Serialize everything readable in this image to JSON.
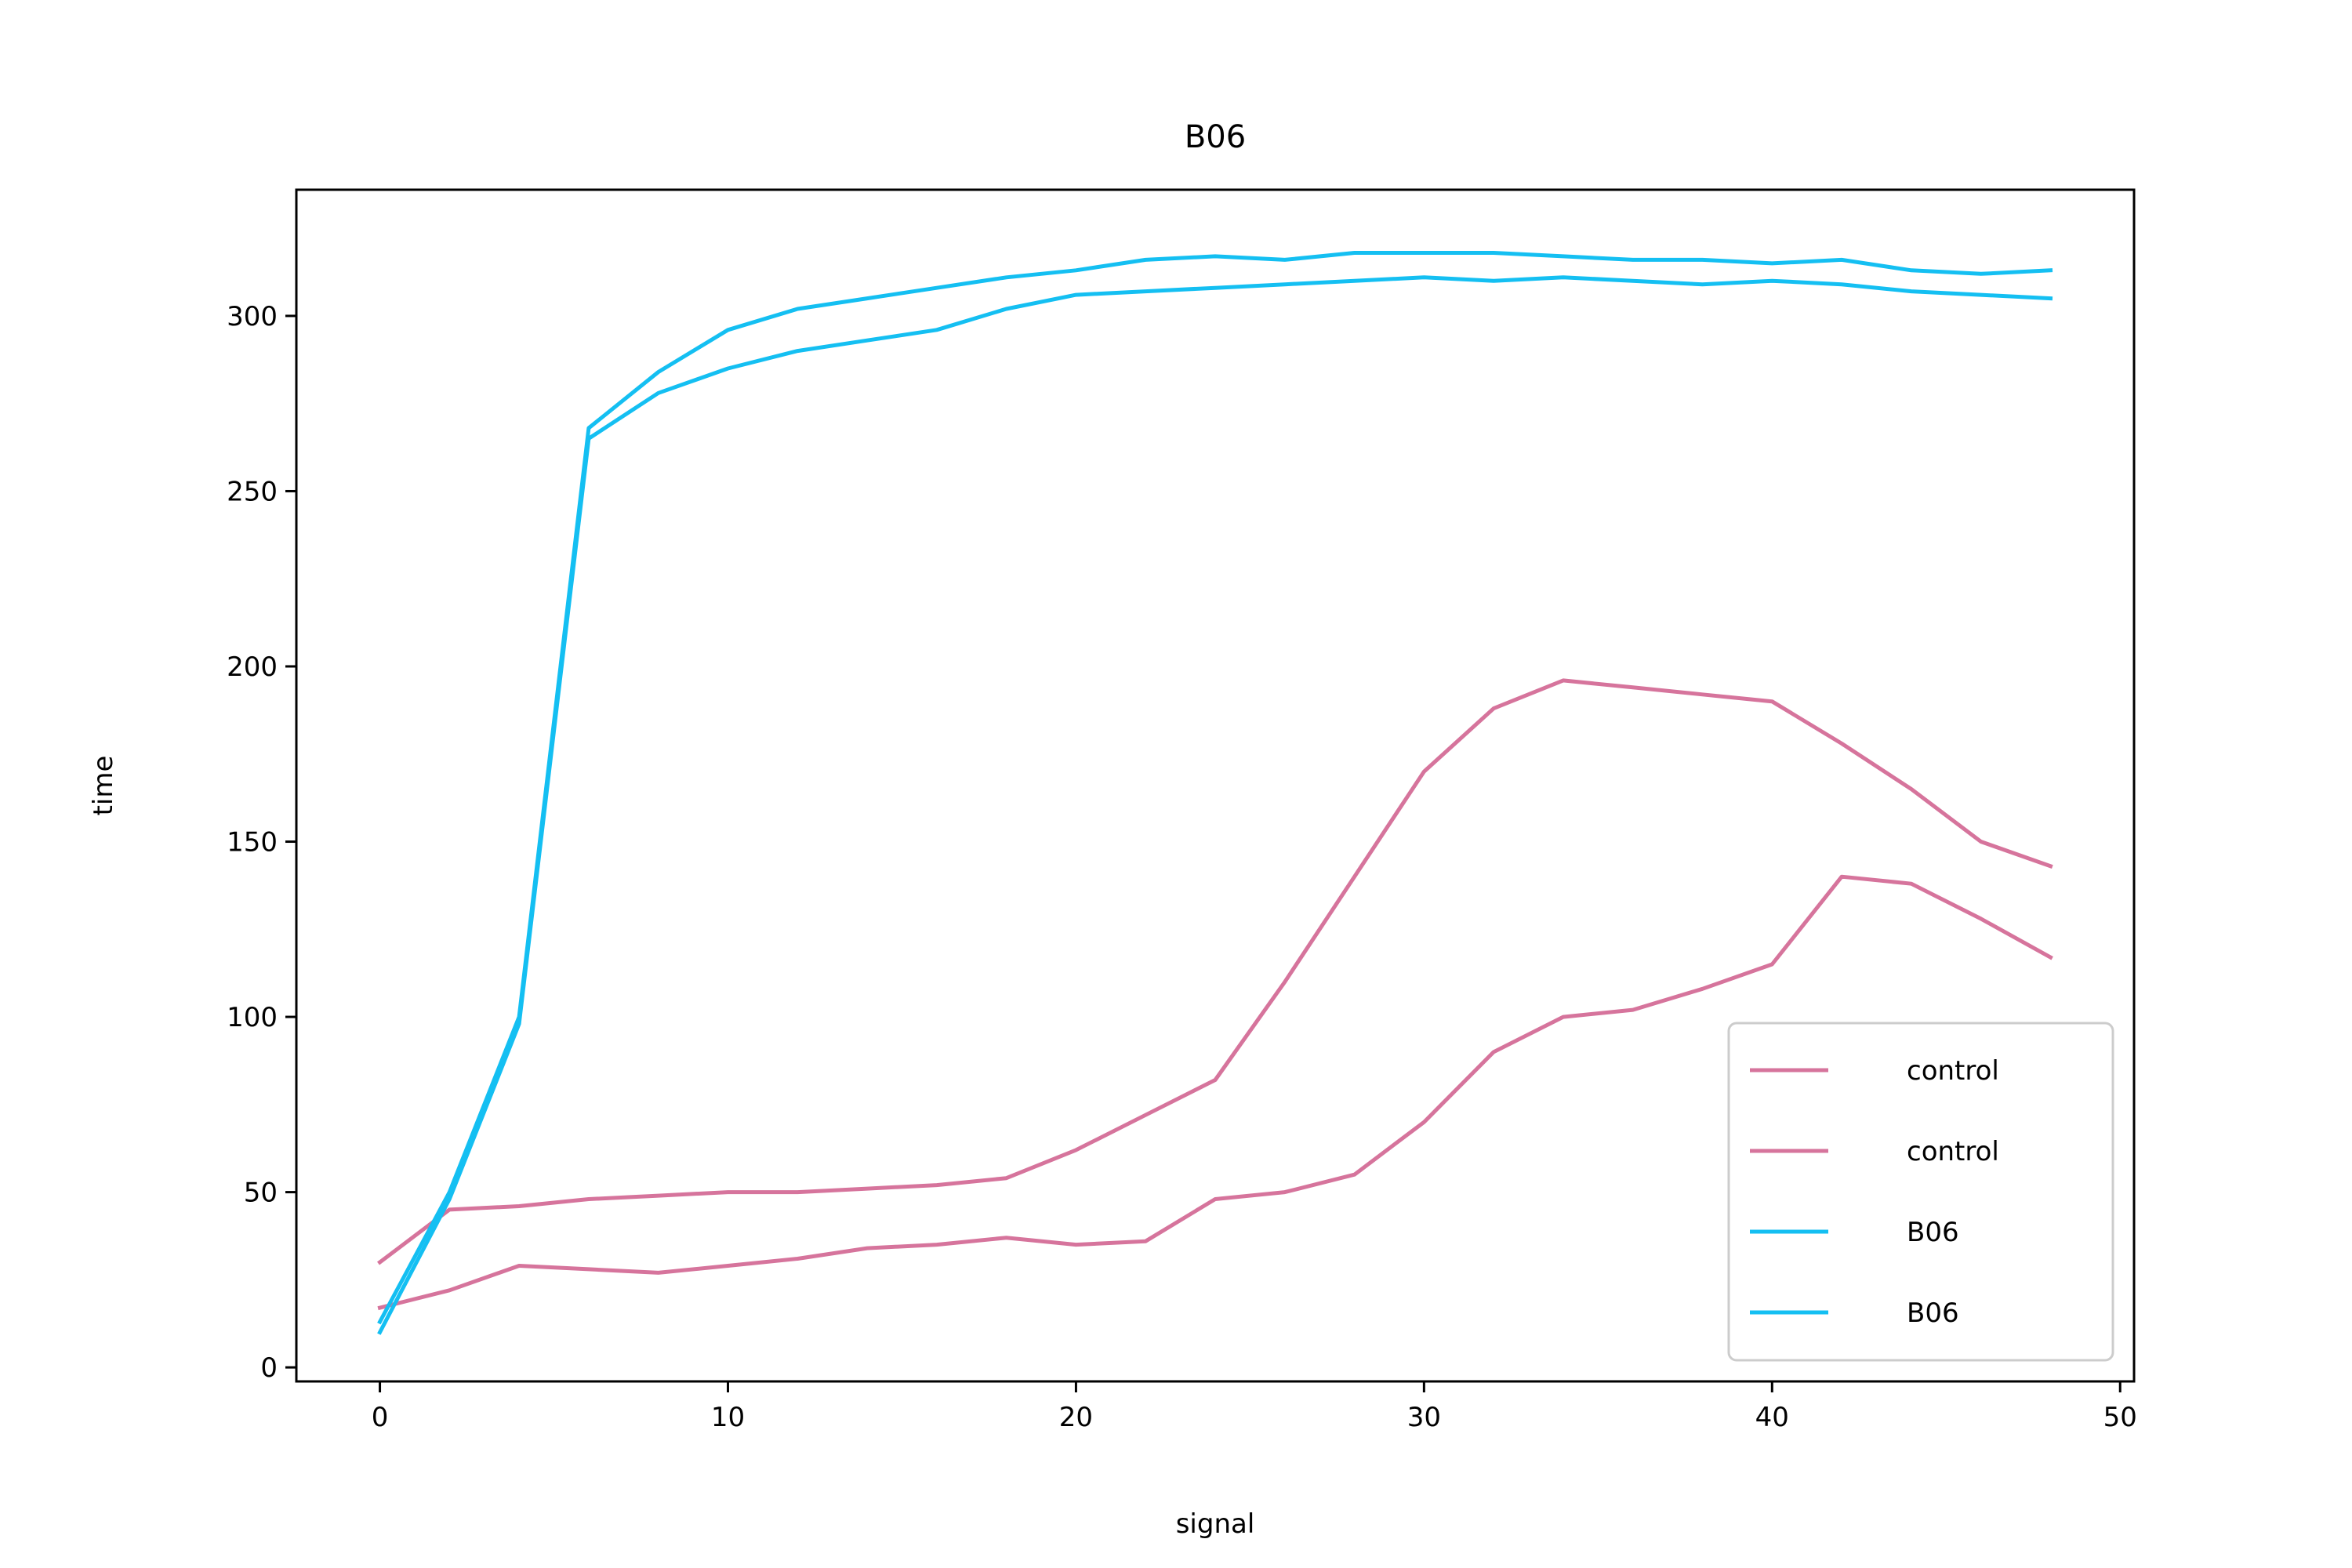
{
  "chart_data": {
    "type": "line",
    "title": "B06",
    "xlabel": "signal",
    "ylabel": "time",
    "xlim": [
      -2.4,
      50.4
    ],
    "ylim": [
      -4,
      336
    ],
    "xticks": [
      0,
      10,
      20,
      30,
      40,
      50
    ],
    "yticks": [
      0,
      50,
      100,
      150,
      200,
      250,
      300
    ],
    "grid": false,
    "legend_position": "bottom-right",
    "colors": {
      "control": "#d6749c",
      "B06": "#14bff2"
    },
    "x": [
      0,
      2,
      4,
      6,
      8,
      10,
      12,
      14,
      16,
      18,
      20,
      22,
      24,
      26,
      28,
      30,
      32,
      34,
      36,
      38,
      40,
      42,
      44,
      46,
      48
    ],
    "series": [
      {
        "name": "control",
        "color": "#d6749c",
        "values": [
          30,
          45,
          46,
          48,
          49,
          50,
          50,
          51,
          52,
          54,
          62,
          72,
          82,
          110,
          140,
          170,
          188,
          196,
          194,
          192,
          190,
          178,
          165,
          150,
          143
        ]
      },
      {
        "name": "control",
        "color": "#d6749c",
        "values": [
          17,
          22,
          29,
          28,
          27,
          29,
          31,
          34,
          35,
          37,
          35,
          36,
          48,
          50,
          55,
          70,
          90,
          100,
          102,
          108,
          115,
          140,
          138,
          128,
          117
        ]
      },
      {
        "name": "B06",
        "color": "#14bff2",
        "values": [
          13,
          50,
          100,
          268,
          284,
          296,
          302,
          305,
          308,
          311,
          313,
          316,
          317,
          316,
          318,
          318,
          318,
          317,
          316,
          316,
          315,
          316,
          313,
          312,
          313
        ]
      },
      {
        "name": "B06",
        "color": "#14bff2",
        "values": [
          10,
          48,
          98,
          265,
          278,
          285,
          290,
          293,
          296,
          302,
          306,
          307,
          308,
          309,
          310,
          311,
          310,
          311,
          310,
          309,
          310,
          309,
          307,
          306,
          305
        ]
      }
    ]
  }
}
